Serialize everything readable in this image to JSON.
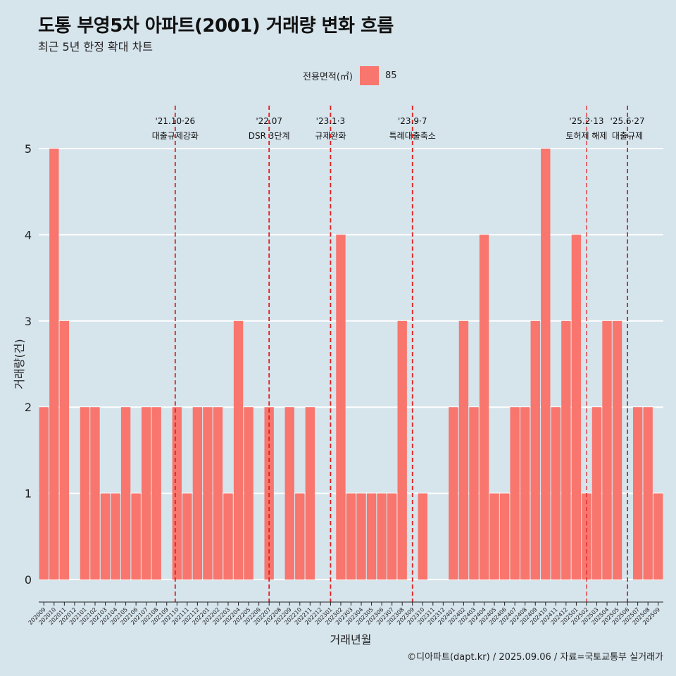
{
  "title": "도통 부영5차 아파트(2001) 거래량 변화 흐름",
  "subtitle": "최근 5년 한정 확대 차트",
  "legend": {
    "title": "전용면적(㎡)",
    "label": "85"
  },
  "caption": "©디아파트(dapt.kr) / 2025.09.06 / 자료=국토교통부 실거래가",
  "colors": {
    "bar": "#f8766d",
    "background": "#d6e4ec",
    "grid": "#ffffff",
    "vline": "#e02020"
  },
  "chart_data": {
    "type": "bar",
    "xlabel": "거래년월",
    "ylabel": "거래량(건)",
    "ylim": [
      0,
      5
    ],
    "yticks": [
      0,
      1,
      2,
      3,
      4,
      5
    ],
    "categories": [
      "202009",
      "202010",
      "202011",
      "202012",
      "202101",
      "202102",
      "202103",
      "202104",
      "202105",
      "202106",
      "202107",
      "202108",
      "202109",
      "202110",
      "202111",
      "202112",
      "202201",
      "202202",
      "202203",
      "202204",
      "202205",
      "202206",
      "202207",
      "202208",
      "202209",
      "202210",
      "202211",
      "202212",
      "202301",
      "202302",
      "202303",
      "202304",
      "202305",
      "202306",
      "202307",
      "202308",
      "202309",
      "202310",
      "202311",
      "202312",
      "202401",
      "202402",
      "202403",
      "202404",
      "202405",
      "202406",
      "202407",
      "202408",
      "202409",
      "202410",
      "202411",
      "202412",
      "202501",
      "202502",
      "202503",
      "202504",
      "202505",
      "202506",
      "202507",
      "202508",
      "202509"
    ],
    "series": [
      {
        "name": "85",
        "values": [
          2,
          5,
          3,
          0,
          2,
          2,
          1,
          1,
          2,
          1,
          2,
          2,
          0,
          2,
          1,
          2,
          2,
          2,
          1,
          3,
          2,
          0,
          2,
          0,
          2,
          1,
          2,
          0,
          0,
          4,
          1,
          1,
          1,
          1,
          1,
          3,
          0,
          1,
          0,
          0,
          2,
          3,
          2,
          4,
          1,
          1,
          2,
          2,
          3,
          5,
          2,
          3,
          4,
          1,
          2,
          3,
          3,
          0,
          2,
          2,
          1
        ]
      }
    ],
    "annotations": [
      {
        "date": "'21.10·26",
        "label": "대출규제강화",
        "index": 13.33
      },
      {
        "date": "'22.07",
        "label": "DSR 3단계",
        "index": 22.5
      },
      {
        "date": "'23.1·3",
        "label": "규제완화",
        "index": 28.5
      },
      {
        "date": "'23.9·7",
        "label": "특례대출축소",
        "index": 36.5
      },
      {
        "date": "'25.2·13",
        "label": "토허제 해제",
        "index": 53.5
      },
      {
        "date": "'25.6·27",
        "label": "대출규제",
        "index": 57.5
      }
    ]
  }
}
